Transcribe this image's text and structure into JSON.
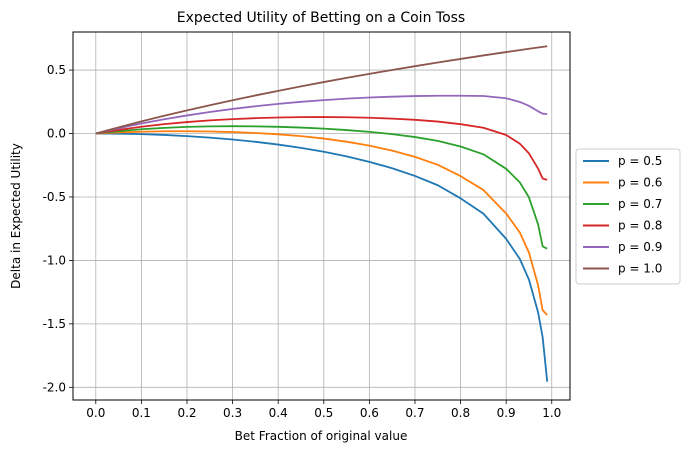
{
  "chart_data": {
    "type": "line",
    "title": "Expected Utility of Betting on a Coin Toss",
    "xlabel": "Bet Fraction of original value",
    "ylabel": "Delta in Expected Utility",
    "xlim": [
      -0.05,
      1.04
    ],
    "ylim": [
      -2.1,
      0.8
    ],
    "xticks": [
      "0.0",
      "0.1",
      "0.2",
      "0.3",
      "0.4",
      "0.5",
      "0.6",
      "0.7",
      "0.8",
      "0.9",
      "1.0"
    ],
    "xtick_values": [
      0.0,
      0.1,
      0.2,
      0.3,
      0.4,
      0.5,
      0.6,
      0.7,
      0.8,
      0.9,
      1.0
    ],
    "yticks": [
      "0.5",
      "0.0",
      "-0.5",
      "-1.0",
      "-1.5",
      "-2.0"
    ],
    "ytick_values": [
      0.5,
      0.0,
      -0.5,
      -1.0,
      -1.5,
      -2.0
    ],
    "grid": true,
    "legend": "outside-right",
    "x": [
      0.0,
      0.05,
      0.1,
      0.15,
      0.2,
      0.25,
      0.3,
      0.35,
      0.4,
      0.45,
      0.5,
      0.55,
      0.6,
      0.65,
      0.7,
      0.75,
      0.8,
      0.85,
      0.9,
      0.93,
      0.95,
      0.97,
      0.98,
      0.99
    ],
    "series": [
      {
        "name": "p = 0.5",
        "color": "#1f77b4",
        "values": [
          0.0,
          -0.0013,
          -0.005,
          -0.0113,
          -0.0204,
          -0.0323,
          -0.0472,
          -0.0654,
          -0.0872,
          -0.1128,
          -0.1438,
          -0.1803,
          -0.2231,
          -0.2737,
          -0.3342,
          -0.4077,
          -0.5108,
          -0.6314,
          -0.8304,
          -0.9887,
          -1.1513,
          -1.4098,
          -1.6046,
          -1.9551
        ]
      },
      {
        "name": "p = 0.6",
        "color": "#ff7f0e",
        "values": [
          0.0,
          0.0086,
          0.0142,
          0.0176,
          0.0179,
          0.016,
          0.0115,
          0.0041,
          -0.0064,
          -0.0208,
          -0.0398,
          -0.0644,
          -0.0955,
          -0.1348,
          -0.184,
          -0.2467,
          -0.3355,
          -0.4446,
          -0.6298,
          -0.7805,
          -0.9385,
          -1.1946,
          -1.3917,
          -1.4299
        ]
      },
      {
        "name": "p = 0.7",
        "color": "#2ca02c",
        "values": [
          0.0,
          0.0185,
          0.0333,
          0.0447,
          0.0521,
          0.0563,
          0.0577,
          0.0565,
          0.0528,
          0.0468,
          0.0384,
          0.0272,
          0.0132,
          -0.0049,
          -0.0279,
          -0.0576,
          -0.1022,
          -0.1637,
          -0.2781,
          -0.3854,
          -0.5034,
          -0.7153,
          -0.8893,
          -0.9074
        ]
      },
      {
        "name": "p = 0.8",
        "color": "#d62728",
        "values": [
          0.0,
          0.0283,
          0.0534,
          0.0743,
          0.0903,
          0.1033,
          0.1135,
          0.1211,
          0.1262,
          0.129,
          0.1295,
          0.128,
          0.1243,
          0.1174,
          0.1081,
          0.0943,
          0.0734,
          0.0456,
          -0.0115,
          -0.0801,
          -0.1568,
          -0.2761,
          -0.3548,
          -0.3655
        ]
      },
      {
        "name": "p = 0.9",
        "color": "#9467bd",
        "values": [
          0.0,
          0.0417,
          0.0791,
          0.1124,
          0.1425,
          0.1695,
          0.1936,
          0.2149,
          0.2336,
          0.2497,
          0.2634,
          0.2747,
          0.2837,
          0.2904,
          0.295,
          0.2974,
          0.2976,
          0.2955,
          0.278,
          0.2487,
          0.2183,
          0.1753,
          0.1562,
          0.1539
        ]
      },
      {
        "name": "p = 1.0",
        "color": "#8c564b",
        "values": [
          0.0,
          0.0488,
          0.0953,
          0.1398,
          0.1823,
          0.2231,
          0.2624,
          0.3001,
          0.3365,
          0.3716,
          0.4055,
          0.4383,
          0.47,
          0.5008,
          0.5306,
          0.5596,
          0.5878,
          0.6152,
          0.6419,
          0.6575,
          0.6678,
          0.678,
          0.6831,
          0.6881
        ]
      }
    ]
  }
}
